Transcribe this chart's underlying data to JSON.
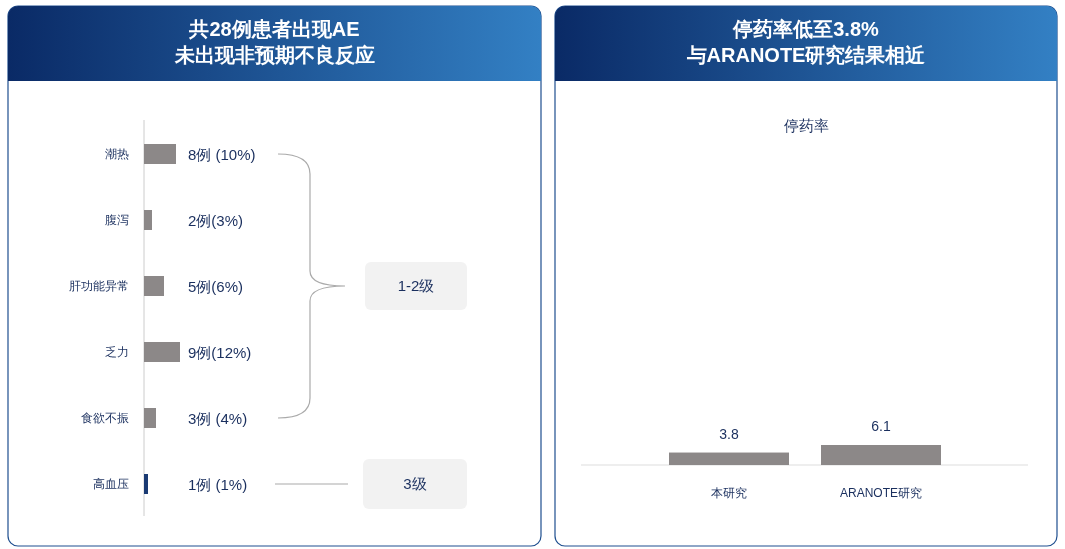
{
  "chart_data": [
    {
      "type": "bar",
      "orientation": "horizontal",
      "title": "共28例患者出现AE\n未出现非预期不良反应",
      "categories": [
        "潮热",
        "腹泻",
        "肝功能异常",
        "乏力",
        "食欲不振",
        "高血压"
      ],
      "values": [
        8,
        2,
        5,
        9,
        3,
        1
      ],
      "colors": [
        "#8c8888",
        "#8c8888",
        "#8c8888",
        "#8c8888",
        "#8c8888",
        "#1a3a73"
      ],
      "value_labels": [
        "8例 (10%)",
        "2例(3%)",
        "5例(6%)",
        "9例(12%)",
        "3例 (4%)",
        "1例 (1%)"
      ],
      "annotations": [
        "1-2级",
        "3级"
      ]
    },
    {
      "type": "bar",
      "title": "停药率低至3.8%\n与ARANOTE研究结果相近",
      "subtitle": "停药率",
      "categories": [
        "本研究",
        "ARANOTE研究"
      ],
      "values": [
        3.8,
        6.1
      ],
      "color": "#8c8888",
      "data_labels": true
    }
  ]
}
